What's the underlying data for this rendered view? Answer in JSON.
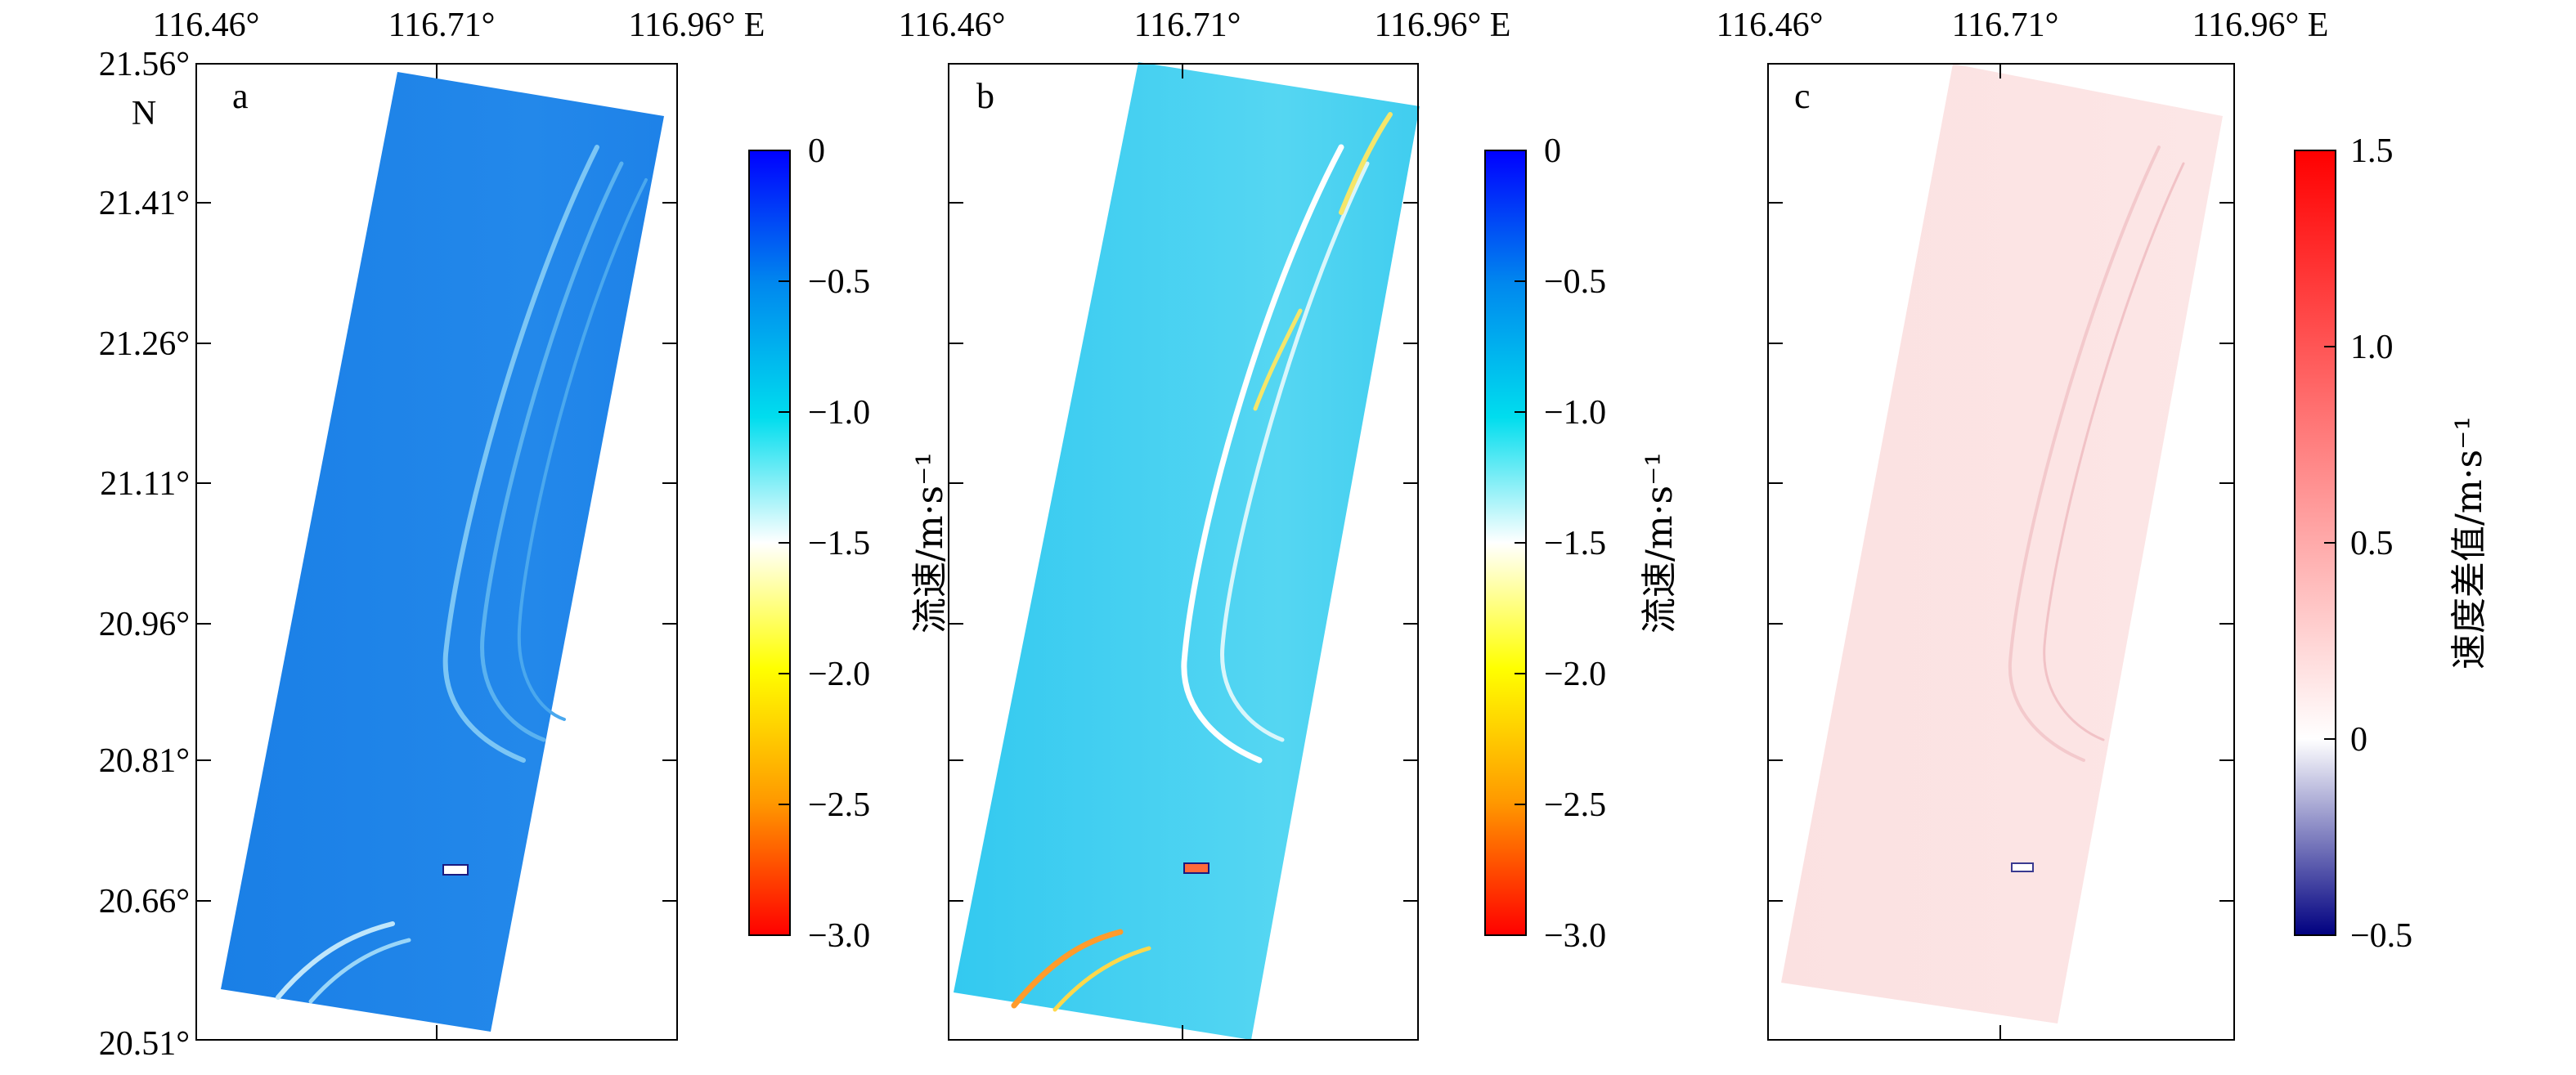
{
  "chart_data": [
    {
      "type": "heatmap",
      "panel_label": "a",
      "x_ticks": [
        "116.46°",
        "116.71°",
        "116.96° E"
      ],
      "y_ticks": [
        "21.56°",
        "21.41°",
        "21.26°",
        "21.11°",
        "20.96°",
        "20.81°",
        "20.66°",
        "20.51°"
      ],
      "y_unit_label": "N",
      "xlim": [
        116.46,
        116.96
      ],
      "ylim": [
        20.51,
        21.56
      ],
      "colorbar": {
        "title": "流速/m·s⁻¹",
        "ticks": [
          "0",
          "−0.5",
          "−1.0",
          "−1.5",
          "−2.0",
          "−2.5",
          "−3.0"
        ],
        "range": [
          -3.0,
          0
        ],
        "colors": [
          "#0000ff",
          "#0088ee",
          "#00ddee",
          "#ffffff",
          "#ffff00",
          "#ff9900",
          "#ff0000"
        ]
      }
    },
    {
      "type": "heatmap",
      "panel_label": "b",
      "x_ticks": [
        "116.46°",
        "116.71°",
        "116.96° E"
      ],
      "xlim": [
        116.46,
        116.96
      ],
      "ylim": [
        20.51,
        21.56
      ],
      "colorbar": {
        "title": "流速/m·s⁻¹",
        "ticks": [
          "0",
          "−0.5",
          "−1.0",
          "−1.5",
          "−2.0",
          "−2.5",
          "−3.0"
        ],
        "range": [
          -3.0,
          0
        ],
        "colors": [
          "#0000ff",
          "#0088ee",
          "#00ddee",
          "#ffffff",
          "#ffff00",
          "#ff9900",
          "#ff0000"
        ]
      }
    },
    {
      "type": "heatmap",
      "panel_label": "c",
      "x_ticks": [
        "116.46°",
        "116.71°",
        "116.96° E"
      ],
      "xlim": [
        116.46,
        116.96
      ],
      "ylim": [
        20.51,
        21.56
      ],
      "colorbar": {
        "title": "速度差值/m·s⁻¹",
        "ticks": [
          "1.5",
          "1.0",
          "0.5",
          "0",
          "−0.5"
        ],
        "range": [
          -0.5,
          1.5
        ],
        "colors": [
          "#ff0000",
          "#ffffff",
          "#000080"
        ]
      }
    }
  ]
}
